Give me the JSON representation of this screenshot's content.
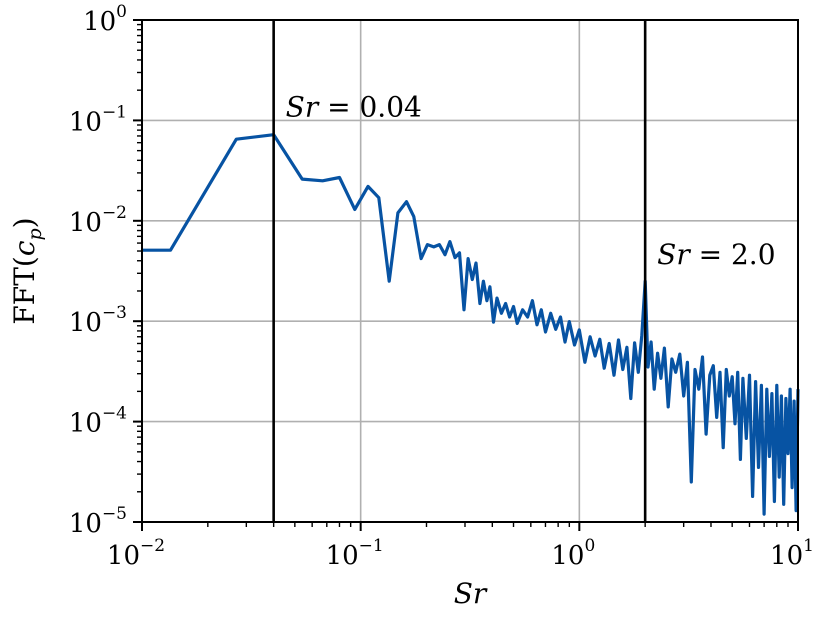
{
  "chart_data": {
    "type": "line",
    "xscale": "log",
    "yscale": "log",
    "xlim": [
      0.01,
      10
    ],
    "ylim": [
      1e-05,
      1
    ],
    "grid": true,
    "xlabel": "Sr",
    "ylabel": "FFT(c_p)",
    "xlabel_parts": {
      "main": "Sr"
    },
    "ylabel_parts": {
      "prefix": "FFT(",
      "var": "c",
      "sub": "p",
      "suffix": ")"
    },
    "x_ticks": [
      {
        "value": 0.01,
        "base": "10",
        "exp": "−2"
      },
      {
        "value": 0.1,
        "base": "10",
        "exp": "−1"
      },
      {
        "value": 1,
        "base": "10",
        "exp": "0"
      },
      {
        "value": 10,
        "base": "10",
        "exp": "1"
      }
    ],
    "y_ticks": [
      {
        "value": 1,
        "base": "10",
        "exp": "0"
      },
      {
        "value": 0.1,
        "base": "10",
        "exp": "−1"
      },
      {
        "value": 0.01,
        "base": "10",
        "exp": "−2"
      },
      {
        "value": 0.001,
        "base": "10",
        "exp": "−3"
      },
      {
        "value": 0.0001,
        "base": "10",
        "exp": "−4"
      },
      {
        "value": 1e-05,
        "base": "10",
        "exp": "−5"
      }
    ],
    "vlines": [
      {
        "x": 0.04,
        "label_var": "Sr",
        "label_rest": " = 0.04",
        "label_y": 0.1
      },
      {
        "x": 2.0,
        "label_var": "Sr",
        "label_rest": " = 2.0",
        "label_y": 0.0034
      }
    ],
    "series": [
      {
        "color": "#0753a3",
        "x": [
          0.01,
          0.0135,
          0.027,
          0.04,
          0.054,
          0.067,
          0.08,
          0.094,
          0.108,
          0.121,
          0.135,
          0.148,
          0.162,
          0.175,
          0.189,
          0.202,
          0.216,
          0.229,
          0.243,
          0.256,
          0.27,
          0.283,
          0.297,
          0.31,
          0.324,
          0.337,
          0.351,
          0.364,
          0.378,
          0.39,
          0.405,
          0.42,
          0.44,
          0.46,
          0.48,
          0.5,
          0.52,
          0.55,
          0.58,
          0.61,
          0.64,
          0.67,
          0.7,
          0.74,
          0.78,
          0.82,
          0.86,
          0.9,
          0.95,
          1.0,
          1.06,
          1.12,
          1.18,
          1.24,
          1.3,
          1.37,
          1.44,
          1.51,
          1.58,
          1.65,
          1.72,
          1.79,
          1.86,
          1.93,
          2.0,
          2.06,
          2.13,
          2.2,
          2.28,
          2.36,
          2.45,
          2.55,
          2.65,
          2.76,
          2.88,
          3.0,
          3.12,
          3.25,
          3.38,
          3.52,
          3.66,
          3.8,
          3.95,
          4.1,
          4.25,
          4.4,
          4.55,
          4.7,
          4.85,
          5.0,
          5.15,
          5.3,
          5.45,
          5.6,
          5.8,
          6.0,
          6.2,
          6.4,
          6.6,
          6.8,
          7.0,
          7.2,
          7.4,
          7.6,
          7.8,
          8.0,
          8.2,
          8.4,
          8.6,
          8.8,
          9.0,
          9.2,
          9.4,
          9.6,
          9.8,
          10.0
        ],
        "y": [
          0.0051,
          0.0051,
          0.065,
          0.072,
          0.026,
          0.025,
          0.027,
          0.013,
          0.022,
          0.017,
          0.0025,
          0.012,
          0.0155,
          0.011,
          0.0042,
          0.0058,
          0.0055,
          0.0058,
          0.0046,
          0.0062,
          0.0043,
          0.0048,
          0.0013,
          0.0042,
          0.0026,
          0.0038,
          0.0015,
          0.0025,
          0.0016,
          0.0022,
          0.00098,
          0.0017,
          0.0012,
          0.0015,
          0.0011,
          0.0014,
          0.00095,
          0.0013,
          0.0011,
          0.0016,
          0.00092,
          0.0013,
          0.00078,
          0.0012,
          0.00083,
          0.0011,
          0.00062,
          0.00099,
          0.00058,
          0.00082,
          0.00039,
          0.0007,
          0.00045,
          0.00066,
          0.00034,
          0.0006,
          0.00029,
          0.00065,
          0.00033,
          0.00055,
          0.00017,
          0.00061,
          0.00031,
          0.00072,
          0.0025,
          0.00035,
          0.00062,
          0.00021,
          0.00048,
          0.00027,
          0.00054,
          0.00014,
          0.00042,
          0.00031,
          0.00047,
          0.00018,
          0.00039,
          2.5e-05,
          0.00033,
          0.00021,
          0.00044,
          7.5e-05,
          0.00029,
          0.00036,
          0.00011,
          0.00031,
          5.5e-05,
          0.00033,
          0.00018,
          0.00028,
          9.5e-05,
          0.00031,
          4.2e-05,
          0.00027,
          6.8e-05,
          0.00029,
          1.8e-05,
          0.00025,
          3.5e-05,
          0.00023,
          1.2e-05,
          0.00021,
          4.5e-05,
          0.00019,
          1.6e-05,
          0.00023,
          2.8e-05,
          0.00018,
          1.5e-05,
          0.00017,
          4.8e-05,
          0.00021,
          2.2e-05,
          0.00016,
          1.3e-05,
          0.00021
        ]
      }
    ]
  }
}
